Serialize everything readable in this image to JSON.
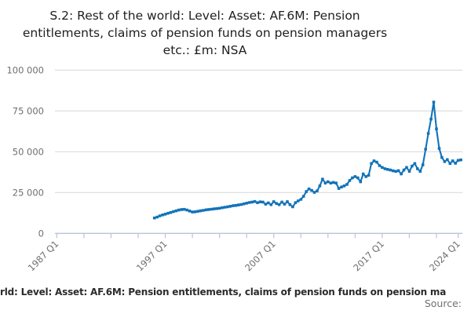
{
  "title": {
    "lines": [
      "S.2: Rest of the world: Level: Asset: AF.6M: Pension",
      "entitlements, claims of pension funds on pension managers",
      "etc.: £m: NSA"
    ]
  },
  "footer": {
    "caption_visible": "rld: Level: Asset: AF.6M: Pension entitlements, claims of pension funds on pension ma",
    "source_label": "Source:"
  },
  "colors": {
    "series_line": "#1273b9",
    "gridline": "#dcdcdc",
    "axis": "#b9c3da",
    "tick_label": "#6f6f6f",
    "title_text": "#1f1f1f",
    "caption_text": "#2b2b2b"
  },
  "chart_data": {
    "type": "line",
    "title": "S.2: Rest of the world: Level: Asset: AF.6M: Pension entitlements, claims of pension funds on pension managers etc.: £m: NSA",
    "unit": "£m",
    "xlabel": "",
    "ylabel": "",
    "grid": "horizontal",
    "legend": "none",
    "ylim": [
      0,
      100000
    ],
    "yticks": [
      {
        "value": 0,
        "label": "0"
      },
      {
        "value": 25000,
        "label": "25 000"
      },
      {
        "value": 50000,
        "label": "50 000"
      },
      {
        "value": 75000,
        "label": "75 000"
      },
      {
        "value": 100000,
        "label": "100 000"
      }
    ],
    "xlim_years": [
      1986.83,
      2024.41
    ],
    "xticks": [
      {
        "year": 1987.0,
        "label": "1987 Q1"
      },
      {
        "year": 1989.5
      },
      {
        "year": 1992.0
      },
      {
        "year": 1994.5
      },
      {
        "year": 1997.0,
        "label": "1997 Q1"
      },
      {
        "year": 1999.5
      },
      {
        "year": 2002.0
      },
      {
        "year": 2004.5
      },
      {
        "year": 2007.0,
        "label": "2007 Q1"
      },
      {
        "year": 2009.5
      },
      {
        "year": 2012.0
      },
      {
        "year": 2014.5
      },
      {
        "year": 2017.0,
        "label": "2017 Q1"
      },
      {
        "year": 2019.5
      },
      {
        "year": 2022.0
      },
      {
        "year": 2024.0,
        "label": "2024 Q1"
      }
    ],
    "series": [
      {
        "name": "S.2: Rest of the world: Level: Asset: AF.6M: Pension entitlements, claims of pension funds on pension managers etc.: £m: NSA",
        "frequency": "quarterly",
        "start_year": 1996,
        "start_quarter": 1,
        "values": [
          9400,
          10000,
          10700,
          11300,
          11800,
          12300,
          12800,
          13300,
          13800,
          14300,
          14600,
          14700,
          14300,
          13700,
          13100,
          13200,
          13500,
          13800,
          14100,
          14400,
          14600,
          14800,
          15000,
          15200,
          15400,
          15700,
          16000,
          16300,
          16600,
          16900,
          17100,
          17400,
          17700,
          18100,
          18500,
          18900,
          19200,
          19500,
          18800,
          19300,
          19200,
          17900,
          18700,
          17600,
          19400,
          18300,
          17600,
          19200,
          17900,
          19400,
          17600,
          16300,
          18800,
          19900,
          20800,
          22700,
          25600,
          27200,
          26300,
          25100,
          26000,
          29100,
          33200,
          30800,
          31600,
          30800,
          31200,
          30800,
          27500,
          28400,
          29100,
          30000,
          32400,
          34000,
          34800,
          34000,
          31600,
          36400,
          34800,
          35600,
          42800,
          44400,
          43600,
          41500,
          40400,
          39600,
          39200,
          38800,
          38300,
          38000,
          38400,
          36400,
          38800,
          40400,
          38000,
          41200,
          42800,
          39600,
          38000,
          42000,
          51600,
          61200,
          70000,
          80400,
          64000,
          52000,
          46500,
          44000,
          45200,
          42800,
          44400,
          43000,
          44700,
          45000
        ]
      }
    ]
  }
}
